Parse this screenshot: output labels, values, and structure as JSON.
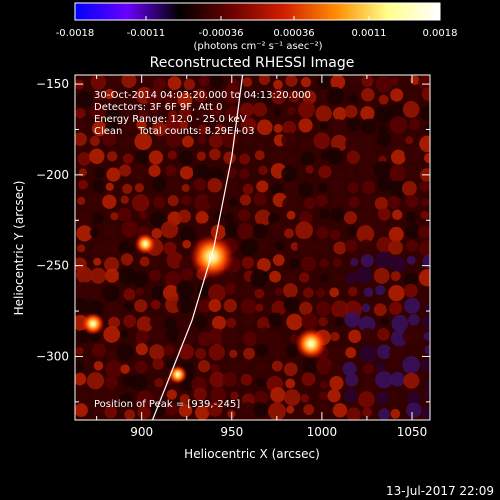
{
  "colorbar": {
    "ticks": [
      "-0.0018",
      "-0.0011",
      "-0.00036",
      "0.00036",
      "0.0011",
      "0.0018"
    ],
    "tick_values": [
      -0.0018,
      -0.0011,
      -0.00036,
      0.00036,
      0.0011,
      0.0018
    ],
    "range": [
      -0.0018,
      0.0018
    ],
    "units_label": "(photons cm⁻² s⁻¹ asec⁻²)",
    "colors": [
      "#0000ff",
      "#6a00ff",
      "#000000",
      "#6a0000",
      "#d21e00",
      "#ff8c00",
      "#ffff8c",
      "#ffffff"
    ]
  },
  "chart_data": {
    "type": "heatmap",
    "title": "Reconstructed RHESSI Image",
    "xlabel": "Heliocentric X (arcsec)",
    "ylabel": "Heliocentric Y (arcsec)",
    "xlim": [
      863,
      1060
    ],
    "ylim": [
      -335,
      -145
    ],
    "xticks": [
      900,
      950,
      1000,
      1050
    ],
    "yticks": [
      -150,
      -200,
      -250,
      -300
    ],
    "x_tick_labels": [
      "900",
      "950",
      "1000",
      "1050"
    ],
    "y_tick_labels": [
      "−150",
      "−200",
      "−250",
      "−300"
    ],
    "annotations": [
      "30-Oct-2014 04:03:20.000 to 04:13:20.000",
      "Detectors: 3F 6F 9F, Att 0",
      "Energy Range: 12.0 - 25.0 keV",
      "Clean     Total counts: 8.29E+03"
    ],
    "peak_label": "Position of Peak = [939,-245]",
    "sources": [
      {
        "x": 939,
        "y": -245,
        "value": 0.0018
      },
      {
        "x": 994,
        "y": -293,
        "value": 0.0011
      },
      {
        "x": 873,
        "y": -282,
        "value": 0.0006
      },
      {
        "x": 902,
        "y": -238,
        "value": 0.0005
      },
      {
        "x": 920,
        "y": -310,
        "value": 0.0004
      }
    ],
    "limb": [
      [
        956,
        -145
      ],
      [
        950,
        -190
      ],
      [
        940,
        -240
      ],
      [
        928,
        -280
      ],
      [
        916,
        -310
      ],
      [
        906,
        -335
      ]
    ],
    "colors": {
      "limb": "#ffffff"
    }
  },
  "footer": {
    "timestamp": "13-Jul-2017 22:09"
  }
}
